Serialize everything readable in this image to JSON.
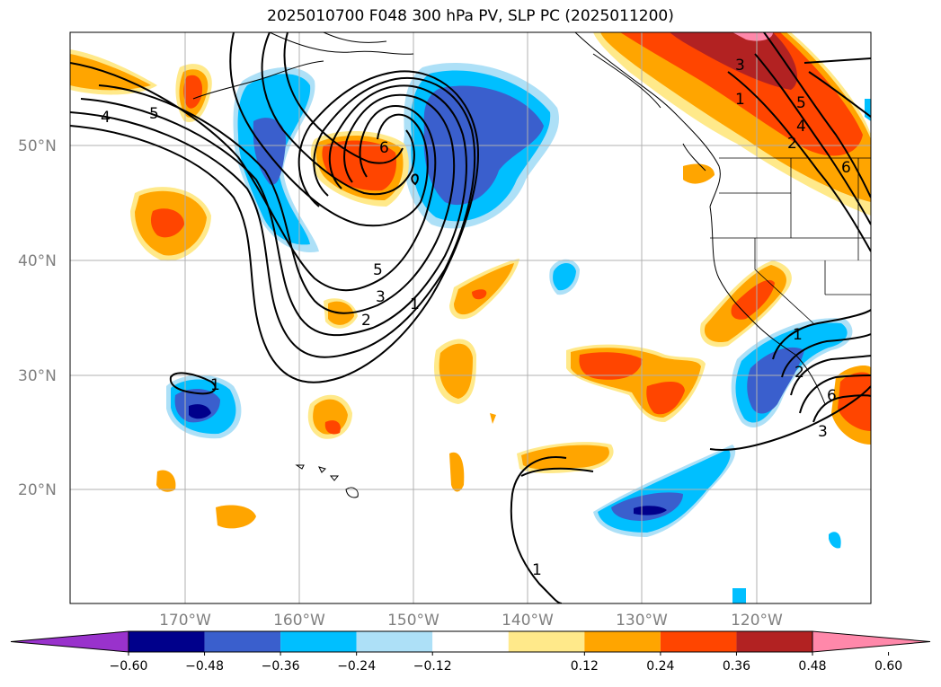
{
  "title": "2025010700 F048 300 hPa PV, SLP PC (2025011200)",
  "lat_labels": [
    "50°N",
    "40°N",
    "30°N",
    "20°N"
  ],
  "lon_labels": [
    "170°W",
    "160°W",
    "150°W",
    "140°W",
    "130°W",
    "120°W"
  ],
  "colorbar": {
    "colors": [
      "#9932CC",
      "#00008B",
      "#3A5FCD",
      "#00BFFF",
      "#ADE0F7",
      "#FFFFFF",
      "#FFE98A",
      "#FFA500",
      "#FF4500",
      "#B22222",
      "#FF88AA"
    ],
    "tick_labels": [
      "−0.60",
      "−0.48",
      "−0.36",
      "−0.24",
      "−0.12",
      "0.12",
      "0.24",
      "0.36",
      "0.48",
      "0.60"
    ]
  },
  "contour_labels": [
    "4",
    "5",
    "6",
    "5",
    "3",
    "2",
    "1",
    "1",
    "3",
    "1",
    "5",
    "4",
    "2",
    "6",
    "1",
    "2",
    "6",
    "3",
    "1"
  ],
  "shading_colors": {
    "red": "#FF4500",
    "orange": "#FFA500",
    "yellow": "#FFE98A",
    "darkred": "#B22222",
    "pink": "#FF88AA",
    "lightblue": "#ADE0F7",
    "cyan": "#00BFFF",
    "blue": "#3A5FCD",
    "navy": "#00008B"
  }
}
